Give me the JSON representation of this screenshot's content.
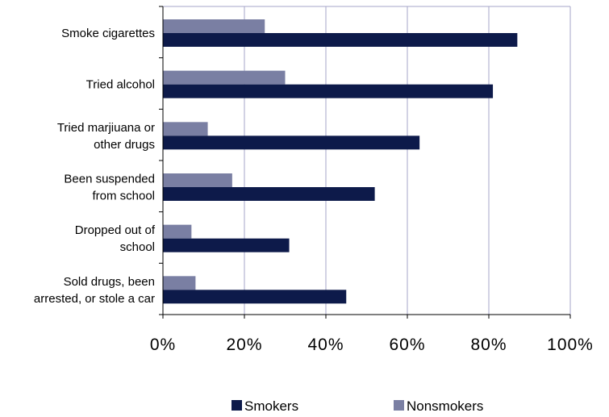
{
  "chart_data": {
    "type": "bar",
    "orientation": "horizontal",
    "categories": [
      [
        "Smoke cigarettes"
      ],
      [
        "Tried alcohol"
      ],
      [
        "Tried marjiuana or",
        "other drugs"
      ],
      [
        "Been suspended",
        "from school"
      ],
      [
        "Dropped out of",
        "school"
      ],
      [
        "Sold drugs, been",
        "arrested, or stole a car"
      ]
    ],
    "series": [
      {
        "name": "Smokers",
        "color": "#0d1a4a",
        "values": [
          87,
          81,
          63,
          52,
          31,
          45
        ]
      },
      {
        "name": "Nonsmokers",
        "color": "#7a7fa3",
        "values": [
          25,
          30,
          11,
          17,
          7,
          8
        ]
      }
    ],
    "xlim": [
      0,
      100
    ],
    "xticks": [
      "0%",
      "20%",
      "40%",
      "60%",
      "80%",
      "100%"
    ],
    "grid": true,
    "legend": "bottom"
  }
}
